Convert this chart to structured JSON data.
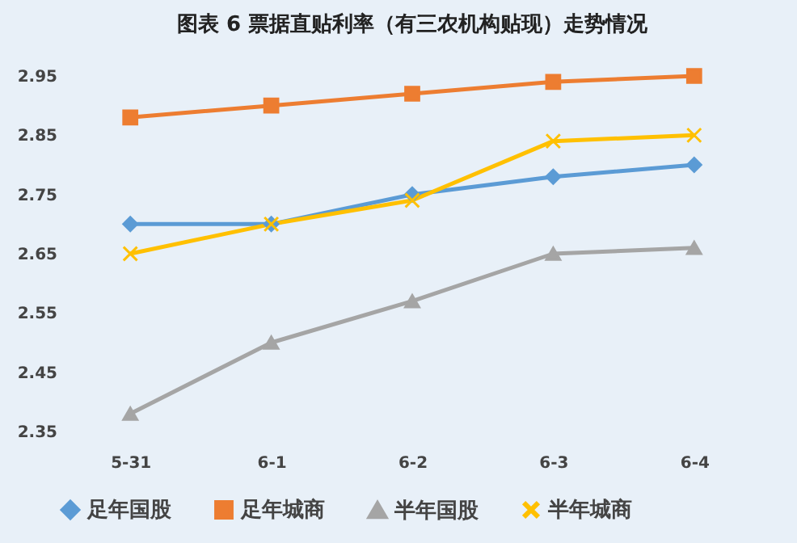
{
  "chart_data": {
    "type": "line",
    "title": "图表 6  票据直贴利率（有三农机构贴现）走势情况",
    "categories": [
      "5-31",
      "6-1",
      "6-2",
      "6-3",
      "6-4"
    ],
    "series": [
      {
        "name": "足年国股",
        "color": "#5b9bd5",
        "marker": "diamond",
        "values": [
          2.7,
          2.7,
          2.75,
          2.78,
          2.8
        ]
      },
      {
        "name": "足年城商",
        "color": "#ed7d31",
        "marker": "square",
        "values": [
          2.88,
          2.9,
          2.92,
          2.94,
          2.95
        ]
      },
      {
        "name": "半年国股",
        "color": "#a5a5a5",
        "marker": "triangle",
        "values": [
          2.38,
          2.5,
          2.57,
          2.65,
          2.66
        ]
      },
      {
        "name": "半年城商",
        "color": "#ffc000",
        "marker": "cross",
        "values": [
          2.65,
          2.7,
          2.74,
          2.84,
          2.85
        ]
      }
    ],
    "ylim": [
      2.35,
      2.95
    ],
    "yticks": [
      2.35,
      2.45,
      2.55,
      2.65,
      2.75,
      2.85,
      2.95
    ],
    "grid": false,
    "legend": "bottom",
    "line_style": "solid"
  }
}
